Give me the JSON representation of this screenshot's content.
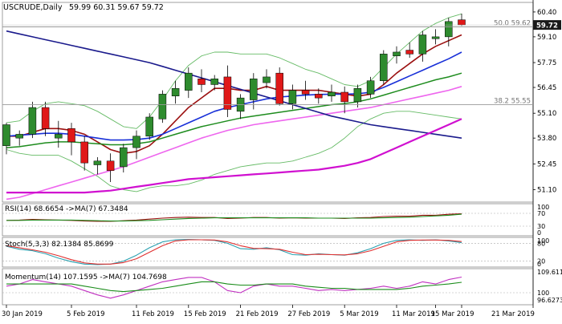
{
  "header": {
    "symbol_text": "USCRUDE,Daily",
    "ohlc_text": "59.99 60.31 59.67 59.72"
  },
  "colors": {
    "bull": "#2e8b2e",
    "bear": "#e01818",
    "ma_red": "#9b1010",
    "ma_blue": "#1830d8",
    "ma_green": "#1e8c1e",
    "ma_pink": "#ee66ee",
    "ma_navy": "#1a1a8c",
    "ma_magenta": "#d010d0",
    "bollinger": "#66bb66",
    "fib": "#9a9a9a",
    "price_box": "#1a1a1a",
    "grid": "#d0d0d0",
    "panel_border": "#888888",
    "stoch_main": "#2aa0b0",
    "stoch_signal": "#e03030",
    "momentum": "#c030c0",
    "momentum_ma": "#1a8c1a"
  },
  "chart_data": [
    {
      "type": "candlestick",
      "title": "USCRUDE,Daily",
      "x_labels": [
        "30 Jan 2019",
        "5 Feb 2019",
        "11 Feb 2019",
        "15 Feb 2019",
        "21 Feb 2019",
        "27 Feb 2019",
        "5 Mar 2019",
        "11 Mar 2019",
        "15 Mar 2019",
        "21 Mar 2019"
      ],
      "y_ticks": [
        60.4,
        59.1,
        57.75,
        56.45,
        55.1,
        53.8,
        52.45,
        51.1
      ],
      "ylim": [
        50.45,
        60.9
      ],
      "current_price": 59.72,
      "candles": [
        {
          "o": 53.4,
          "h": 54.6,
          "l": 52.95,
          "c": 54.5
        },
        {
          "o": 53.8,
          "h": 54.2,
          "l": 53.4,
          "c": 54.0
        },
        {
          "o": 54.0,
          "h": 55.7,
          "l": 53.8,
          "c": 55.4
        },
        {
          "o": 55.4,
          "h": 55.7,
          "l": 53.9,
          "c": 54.3
        },
        {
          "o": 53.8,
          "h": 54.7,
          "l": 53.3,
          "c": 54.0
        },
        {
          "o": 54.3,
          "h": 54.6,
          "l": 52.9,
          "c": 53.6
        },
        {
          "o": 53.6,
          "h": 53.9,
          "l": 52.1,
          "c": 52.5
        },
        {
          "o": 52.4,
          "h": 52.8,
          "l": 51.9,
          "c": 52.6
        },
        {
          "o": 52.6,
          "h": 53.0,
          "l": 51.5,
          "c": 52.1
        },
        {
          "o": 52.3,
          "h": 53.5,
          "l": 52.0,
          "c": 53.3
        },
        {
          "o": 53.3,
          "h": 54.2,
          "l": 52.7,
          "c": 53.9
        },
        {
          "o": 53.9,
          "h": 55.1,
          "l": 53.7,
          "c": 54.9
        },
        {
          "o": 54.8,
          "h": 56.3,
          "l": 54.6,
          "c": 56.1
        },
        {
          "o": 56.0,
          "h": 56.8,
          "l": 55.6,
          "c": 56.4
        },
        {
          "o": 56.3,
          "h": 57.5,
          "l": 55.9,
          "c": 57.2
        },
        {
          "o": 56.9,
          "h": 57.4,
          "l": 56.2,
          "c": 56.6
        },
        {
          "o": 56.6,
          "h": 57.1,
          "l": 56.3,
          "c": 56.9
        },
        {
          "o": 57.0,
          "h": 57.6,
          "l": 54.9,
          "c": 55.3
        },
        {
          "o": 55.2,
          "h": 56.1,
          "l": 54.8,
          "c": 55.9
        },
        {
          "o": 55.8,
          "h": 57.2,
          "l": 55.3,
          "c": 56.9
        },
        {
          "o": 56.7,
          "h": 57.4,
          "l": 56.4,
          "c": 57.0
        },
        {
          "o": 57.2,
          "h": 57.5,
          "l": 55.5,
          "c": 55.6
        },
        {
          "o": 55.6,
          "h": 56.6,
          "l": 55.3,
          "c": 56.3
        },
        {
          "o": 56.3,
          "h": 56.8,
          "l": 55.8,
          "c": 56.1
        },
        {
          "o": 56.1,
          "h": 56.4,
          "l": 55.6,
          "c": 55.9
        },
        {
          "o": 56.0,
          "h": 56.6,
          "l": 55.7,
          "c": 56.2
        },
        {
          "o": 56.2,
          "h": 56.5,
          "l": 55.1,
          "c": 55.7
        },
        {
          "o": 55.7,
          "h": 56.6,
          "l": 55.4,
          "c": 56.4
        },
        {
          "o": 56.1,
          "h": 57.0,
          "l": 55.9,
          "c": 56.8
        },
        {
          "o": 56.8,
          "h": 58.4,
          "l": 56.6,
          "c": 58.2
        },
        {
          "o": 58.1,
          "h": 58.6,
          "l": 57.7,
          "c": 58.3
        },
        {
          "o": 58.4,
          "h": 58.8,
          "l": 58.0,
          "c": 58.2
        },
        {
          "o": 58.2,
          "h": 59.4,
          "l": 57.8,
          "c": 59.2
        },
        {
          "o": 59.0,
          "h": 59.5,
          "l": 58.7,
          "c": 59.1
        },
        {
          "o": 59.1,
          "h": 60.1,
          "l": 58.6,
          "c": 59.9
        },
        {
          "o": 59.99,
          "h": 60.31,
          "l": 59.67,
          "c": 59.72
        }
      ],
      "moving_averages": [
        {
          "color_key": "ma_red",
          "values": [
            53.9,
            53.9,
            54.1,
            54.3,
            54.3,
            54.2,
            54.0,
            53.6,
            53.2,
            53.0,
            53.1,
            53.4,
            54.0,
            54.7,
            55.4,
            55.9,
            56.4,
            56.4,
            56.3,
            56.3,
            56.5,
            56.3,
            56.3,
            56.3,
            56.3,
            56.2,
            56.1,
            56.0,
            56.1,
            56.6,
            57.2,
            57.7,
            58.2,
            58.6,
            58.9,
            59.2
          ]
        },
        {
          "color_key": "ma_blue",
          "values": [
            53.9,
            53.95,
            54.0,
            54.05,
            54.05,
            54.0,
            53.9,
            53.8,
            53.7,
            53.7,
            53.72,
            53.8,
            54.0,
            54.3,
            54.6,
            54.9,
            55.2,
            55.4,
            55.55,
            55.7,
            55.85,
            55.95,
            56.0,
            56.05,
            56.08,
            56.1,
            56.1,
            56.12,
            56.2,
            56.45,
            56.75,
            57.05,
            57.35,
            57.65,
            57.95,
            58.3
          ]
        },
        {
          "color_key": "ma_green",
          "values": [
            53.3,
            53.35,
            53.45,
            53.55,
            53.6,
            53.6,
            53.55,
            53.5,
            53.45,
            53.45,
            53.5,
            53.6,
            53.8,
            54.0,
            54.2,
            54.4,
            54.55,
            54.7,
            54.85,
            54.95,
            55.05,
            55.15,
            55.25,
            55.35,
            55.45,
            55.55,
            55.6,
            55.7,
            55.85,
            56.05,
            56.25,
            56.45,
            56.65,
            56.85,
            57.0,
            57.2
          ]
        },
        {
          "color_key": "ma_pink",
          "values": [
            50.6,
            50.7,
            50.9,
            51.1,
            51.3,
            51.5,
            51.7,
            51.9,
            52.1,
            52.3,
            52.55,
            52.8,
            53.05,
            53.3,
            53.55,
            53.8,
            54.0,
            54.2,
            54.35,
            54.5,
            54.6,
            54.7,
            54.8,
            54.9,
            55.0,
            55.1,
            55.2,
            55.3,
            55.4,
            55.55,
            55.7,
            55.85,
            56.0,
            56.15,
            56.3,
            56.5
          ]
        },
        {
          "color_key": "ma_navy",
          "values": [
            59.4,
            59.25,
            59.1,
            58.95,
            58.8,
            58.65,
            58.5,
            58.35,
            58.2,
            58.05,
            57.9,
            57.75,
            57.55,
            57.35,
            57.15,
            56.95,
            56.75,
            56.55,
            56.35,
            56.15,
            55.95,
            55.75,
            55.55,
            55.35,
            55.15,
            54.95,
            54.8,
            54.65,
            54.5,
            54.4,
            54.3,
            54.2,
            54.1,
            54.0,
            53.9,
            53.8
          ]
        },
        {
          "color_key": "ma_magenta",
          "values": [
            50.95,
            50.95,
            50.95,
            50.95,
            50.95,
            50.95,
            50.95,
            51.0,
            51.05,
            51.15,
            51.25,
            51.35,
            51.45,
            51.55,
            51.65,
            51.7,
            51.75,
            51.8,
            51.85,
            51.9,
            51.95,
            52.0,
            52.05,
            52.1,
            52.15,
            52.25,
            52.35,
            52.5,
            52.7,
            53.0,
            53.3,
            53.6,
            53.9,
            54.2,
            54.5,
            54.8
          ]
        }
      ],
      "bollinger": {
        "upper": [
          54.6,
          54.7,
          55.2,
          55.6,
          55.7,
          55.6,
          55.5,
          55.2,
          54.8,
          54.4,
          54.3,
          54.9,
          55.8,
          56.8,
          57.6,
          58.1,
          58.3,
          58.3,
          58.2,
          58.2,
          58.2,
          58.0,
          57.7,
          57.4,
          57.2,
          56.9,
          56.6,
          56.5,
          56.8,
          57.5,
          58.2,
          58.8,
          59.4,
          59.8,
          60.1,
          60.3
        ],
        "lower": [
          53.2,
          53.0,
          52.9,
          52.9,
          52.9,
          52.6,
          52.2,
          51.8,
          51.3,
          51.1,
          51.0,
          51.2,
          51.3,
          51.3,
          51.4,
          51.6,
          51.9,
          52.1,
          52.3,
          52.4,
          52.5,
          52.5,
          52.6,
          52.8,
          53.0,
          53.3,
          53.8,
          54.4,
          54.8,
          55.1,
          55.2,
          55.2,
          55.1,
          55.0,
          54.9,
          54.8
        ]
      },
      "fib_levels": [
        {
          "label": "50.0 59.62",
          "value": 59.62
        },
        {
          "label": "38.2 55.55",
          "value": 55.55
        }
      ]
    },
    {
      "type": "line",
      "title": "RSI(14) 68.6654 ->MA(7) 67.3484",
      "y_ticks": [
        100,
        70,
        30,
        0
      ],
      "ylim": [
        0,
        100
      ],
      "levels": [
        70,
        30
      ],
      "series": [
        {
          "color_key": "ma_red",
          "values": [
            48,
            49,
            51,
            50,
            49,
            48,
            46,
            45,
            45,
            47,
            49,
            52,
            55,
            57,
            58,
            57,
            57,
            54,
            55,
            57,
            57,
            55,
            56,
            55,
            55,
            55,
            54,
            56,
            57,
            60,
            61,
            61,
            64,
            64,
            67,
            68.67
          ]
        },
        {
          "color_key": "ma_green",
          "values": [
            48,
            48,
            49,
            49,
            49,
            49,
            48,
            47,
            46,
            46,
            47,
            48,
            50,
            52,
            54,
            55,
            56,
            56,
            56,
            56,
            56,
            56,
            56,
            56,
            55,
            55,
            55,
            55,
            55,
            56,
            57,
            58,
            60,
            62,
            64,
            67.35
          ]
        }
      ]
    },
    {
      "type": "line",
      "title": "Stoch(5,3,3) 82.1384 85.8699",
      "y_ticks": [
        100,
        80,
        20,
        0
      ],
      "ylim": [
        0,
        100
      ],
      "levels": [
        80,
        20
      ],
      "series": [
        {
          "color_key": "stoch_main",
          "values": [
            70,
            60,
            55,
            45,
            30,
            18,
            10,
            8,
            10,
            20,
            40,
            65,
            85,
            92,
            93,
            92,
            90,
            80,
            62,
            60,
            65,
            58,
            42,
            40,
            45,
            42,
            40,
            48,
            62,
            80,
            90,
            92,
            90,
            92,
            88,
            82.14
          ]
        },
        {
          "color_key": "stoch_signal",
          "values": [
            72,
            65,
            58,
            50,
            38,
            25,
            14,
            10,
            10,
            15,
            28,
            50,
            72,
            88,
            92,
            92,
            91,
            85,
            72,
            63,
            62,
            60,
            50,
            42,
            43,
            42,
            41,
            45,
            55,
            70,
            85,
            90,
            91,
            91,
            90,
            85.87
          ]
        }
      ]
    },
    {
      "type": "line",
      "title": "Momentum(14) 107.1595 ->MA(7) 104.7698",
      "y_ticks": [
        109.6114,
        100,
        96.6273
      ],
      "ylim": [
        94.5,
        111
      ],
      "levels": [
        100
      ],
      "series": [
        {
          "color_key": "momentum",
          "values": [
            103,
            104,
            106,
            105,
            104,
            103,
            101,
            99,
            97.5,
            99,
            101,
            103,
            105,
            106,
            107,
            107,
            105,
            101,
            100,
            103,
            104,
            103,
            103,
            102,
            101,
            101.5,
            101,
            101.5,
            102,
            103,
            102,
            103,
            105,
            104,
            106,
            107.16
          ]
        },
        {
          "color_key": "momentum_ma",
          "values": [
            104,
            104,
            104,
            104,
            104,
            104,
            103,
            102,
            101,
            100.5,
            101,
            101.5,
            102,
            103,
            104,
            105,
            105,
            104,
            103.5,
            103.5,
            104,
            104,
            104,
            103,
            102.5,
            102,
            102,
            101.5,
            101.5,
            101.5,
            101.5,
            102,
            103,
            103.5,
            104,
            104.77
          ]
        }
      ]
    }
  ]
}
